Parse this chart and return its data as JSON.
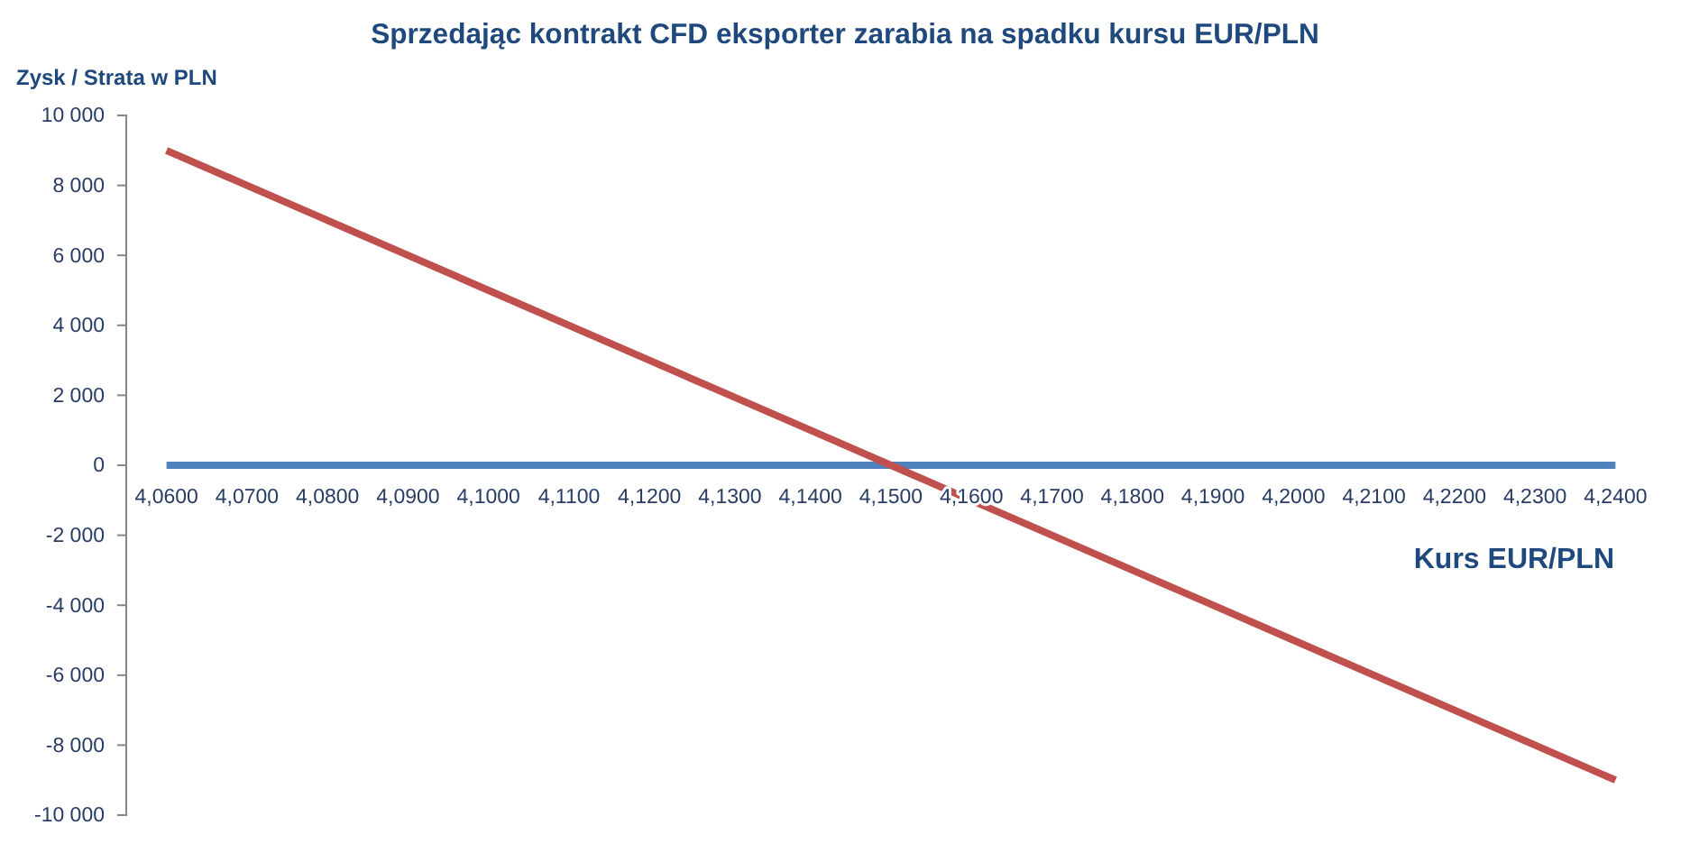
{
  "chart_data": {
    "type": "line",
    "title": "Sprzedając kontrakt CFD eksporter zarabia na spadku kursu EUR/PLN",
    "xlabel": "Kurs EUR/PLN",
    "ylabel": "Zysk / Strata w PLN",
    "categories": [
      "4,0600",
      "4,0700",
      "4,0800",
      "4,0900",
      "4,1000",
      "4,1100",
      "4,1200",
      "4,1300",
      "4,1400",
      "4,1500",
      "4,1600",
      "4,1700",
      "4,1800",
      "4,1900",
      "4,2000",
      "4,2100",
      "4,2200",
      "4,2300",
      "4,2400"
    ],
    "series": [
      {
        "color": "#4f81bd",
        "values": [
          0,
          0,
          0,
          0,
          0,
          0,
          0,
          0,
          0,
          0,
          0,
          0,
          0,
          0,
          0,
          0,
          0,
          0,
          0
        ]
      },
      {
        "color": "#c0504d",
        "values": [
          9000,
          8000,
          7000,
          6000,
          5000,
          4000,
          3000,
          2000,
          1000,
          0,
          -1000,
          -2000,
          -3000,
          -4000,
          -5000,
          -6000,
          -7000,
          -8000,
          -9000
        ]
      }
    ],
    "ylim": [
      -10000,
      10000
    ],
    "yticks": [
      {
        "value": -10000,
        "label": "-10 000"
      },
      {
        "value": -8000,
        "label": "-8 000"
      },
      {
        "value": -6000,
        "label": "-6 000"
      },
      {
        "value": -4000,
        "label": "-4 000"
      },
      {
        "value": -2000,
        "label": "-2 000"
      },
      0,
      {
        "value": 2000,
        "label": "2 000"
      },
      {
        "value": 4000,
        "label": "4 000"
      },
      {
        "value": 6000,
        "label": "6 000"
      },
      {
        "value": 8000,
        "label": "8 000"
      },
      {
        "value": 10000,
        "label": "10 000"
      }
    ],
    "grid": false
  }
}
